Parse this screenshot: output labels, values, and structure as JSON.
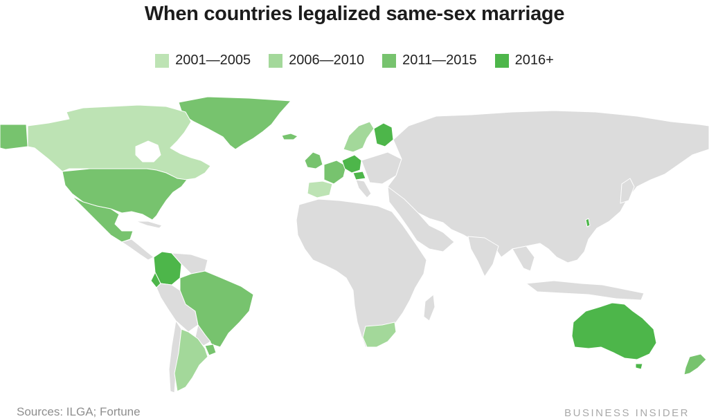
{
  "title": "When countries legalized same-sex marriage",
  "legend": [
    {
      "label": "2001—2005",
      "color": "#bde3b4"
    },
    {
      "label": "2006—2010",
      "color": "#a3d89a"
    },
    {
      "label": "2011—2015",
      "color": "#77c36e"
    },
    {
      "label": "2016+",
      "color": "#4db64a"
    }
  ],
  "colors": {
    "ocean": "#ffffff",
    "land": "#dcdcdc",
    "border": "#ffffff"
  },
  "source": "Sources: ILGA; Fortune",
  "credit": "BUSINESS INSIDER"
}
